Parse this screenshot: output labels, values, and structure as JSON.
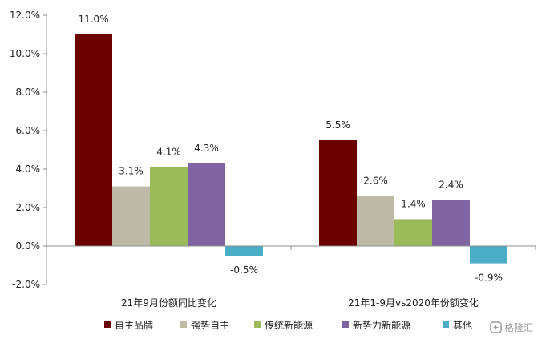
{
  "chart_data": {
    "type": "bar",
    "categories": [
      "21年9月份额同比变化",
      "21年1-9月vs2020年份额变化"
    ],
    "series": [
      {
        "name": "自主品牌",
        "color": "#6b0000",
        "values": [
          11.0,
          5.5
        ],
        "labels": [
          "11.0%",
          "5.5%"
        ]
      },
      {
        "name": "强势自主",
        "color": "#bdbba7",
        "values": [
          3.1,
          2.6
        ],
        "labels": [
          "3.1%",
          "2.6%"
        ]
      },
      {
        "name": "传统新能源",
        "color": "#9bbb59",
        "values": [
          4.1,
          1.4
        ],
        "labels": [
          "4.1%",
          "1.4%"
        ]
      },
      {
        "name": "新势力新能源",
        "color": "#8064a2",
        "values": [
          4.3,
          2.4
        ],
        "labels": [
          "4.3%",
          "2.4%"
        ]
      },
      {
        "name": "其他",
        "color": "#4bacc6",
        "values": [
          -0.5,
          -0.9
        ],
        "labels": [
          "-0.5%",
          "-0.9%"
        ]
      }
    ],
    "ylim": [
      -2.0,
      12.0
    ],
    "yticks": [
      "-2.0%",
      "0.0%",
      "2.0%",
      "4.0%",
      "6.0%",
      "8.0%",
      "10.0%",
      "12.0%"
    ],
    "grid": false,
    "legend": "bottom"
  },
  "watermark": {
    "text": "格隆汇",
    "icon": "gelonghui-logo-icon"
  }
}
